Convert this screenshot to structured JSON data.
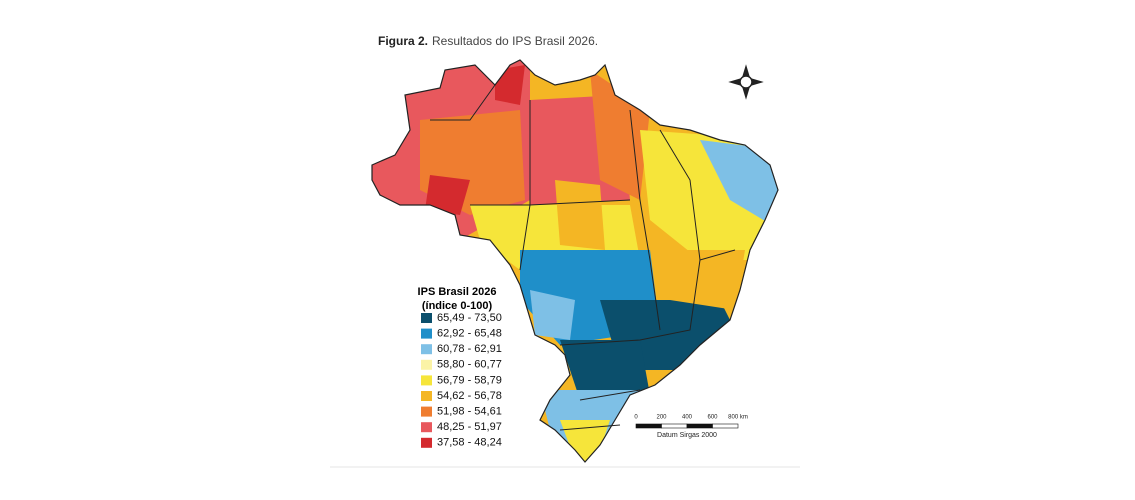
{
  "caption": {
    "label": "Figura 2.",
    "text": "Resultados do IPS Brasil 2026."
  },
  "legend": {
    "title": "IPS Brasil 2026",
    "subtitle": "(índice 0-100)",
    "items": [
      {
        "label": "65,49 - 73,50",
        "color": "#0b4f6c"
      },
      {
        "label": "62,92 - 65,48",
        "color": "#1f8fc9"
      },
      {
        "label": "60,78 - 62,91",
        "color": "#7ec0e6"
      },
      {
        "label": "58,80 - 60,77",
        "color": "#fbf3a6"
      },
      {
        "label": "56,79 - 58,79",
        "color": "#f6e53a"
      },
      {
        "label": "54,62 - 56,78",
        "color": "#f4b624"
      },
      {
        "label": "51,98 - 54,61",
        "color": "#ef7d30"
      },
      {
        "label": "48,25 - 51,97",
        "color": "#e8585d"
      },
      {
        "label": "37,58 - 48,24",
        "color": "#d42a2e"
      }
    ]
  },
  "scale_bar": {
    "ticks": [
      0,
      200,
      400,
      600,
      {
        "value": 800,
        "label": "800 km"
      }
    ],
    "datum": "Datum Sirgas 2000"
  }
}
